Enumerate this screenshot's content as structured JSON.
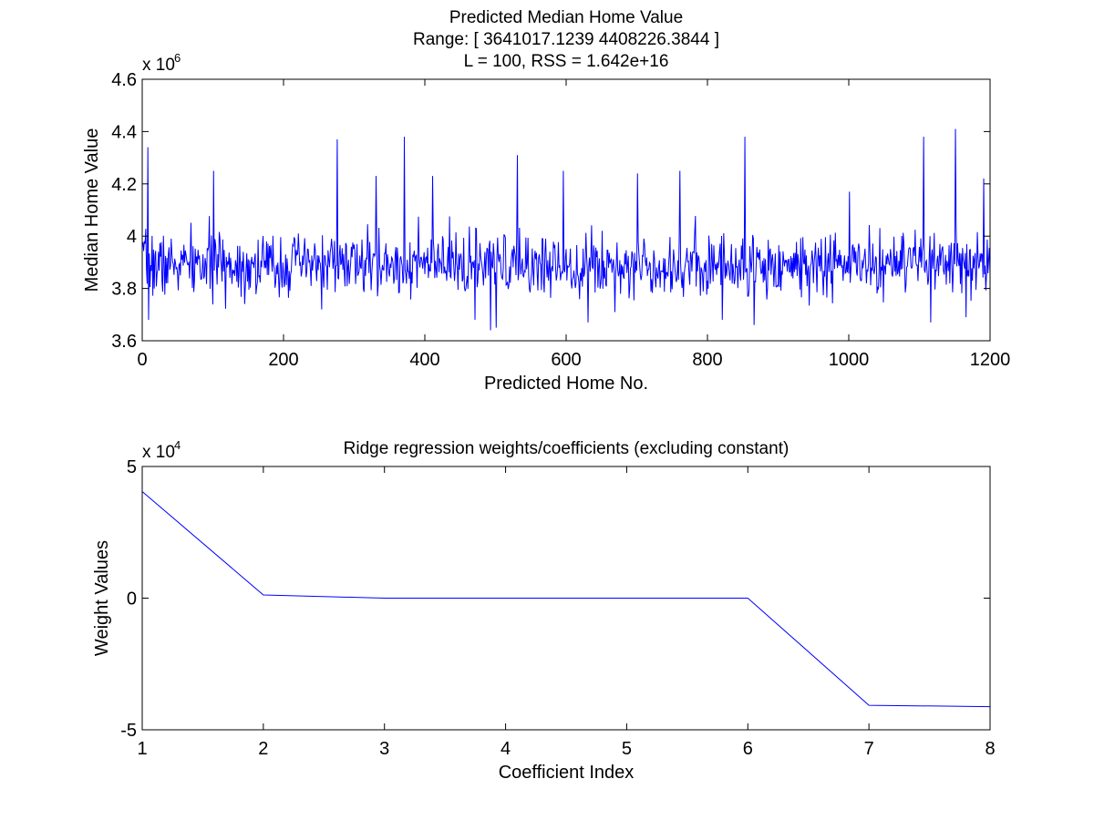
{
  "figure": {
    "background": "#ffffff",
    "axes_color": "#000000"
  },
  "chart_data": [
    {
      "type": "line",
      "title": [
        "Predicted Median Home Value",
        "Range: [ 3641017.1239      4408226.3844 ]",
        "L = 100, RSS = 1.642e+16"
      ],
      "xlabel": "Predicted Home No.",
      "ylabel": "Median Home Value",
      "xlim": [
        0,
        1200
      ],
      "ylim": [
        3.6,
        4.6
      ],
      "y_multiplier": "x 10",
      "y_multiplier_exponent": "6",
      "xticks": [
        0,
        200,
        400,
        600,
        800,
        1000,
        1200
      ],
      "xticklabels": [
        "0",
        "200",
        "400",
        "600",
        "800",
        "1000",
        "1200"
      ],
      "yticks": [
        3.6,
        3.8,
        4.0,
        4.2,
        4.4,
        4.6
      ],
      "yticklabels": [
        "3.6",
        "3.8",
        "4",
        "4.2",
        "4.4",
        "4.6"
      ],
      "grid": false,
      "line_color": "#0000ff",
      "series": [
        {
          "num_points": 1200,
          "range": [
            3.641017,
            4.408226
          ],
          "baseline": 3.89,
          "noise_sd": 0.06,
          "noise_seed": 7,
          "spikes": [
            [
              7,
              4.34
            ],
            [
              8,
              3.68
            ],
            [
              100,
              4.25
            ],
            [
              275,
              4.37
            ],
            [
              330,
              4.23
            ],
            [
              370,
              4.38
            ],
            [
              410,
              4.23
            ],
            [
              470,
              3.68
            ],
            [
              492,
              3.64
            ],
            [
              500,
              3.65
            ],
            [
              530,
              4.31
            ],
            [
              595,
              4.25
            ],
            [
              630,
              3.67
            ],
            [
              700,
              4.24
            ],
            [
              760,
              4.25
            ],
            [
              820,
              3.68
            ],
            [
              852,
              4.38
            ],
            [
              865,
              3.66
            ],
            [
              1000,
              4.17
            ],
            [
              1105,
              4.38
            ],
            [
              1115,
              3.67
            ],
            [
              1150,
              4.41
            ],
            [
              1165,
              3.69
            ],
            [
              1190,
              4.22
            ]
          ]
        }
      ]
    },
    {
      "type": "line",
      "title": [
        "Ridge regression weights/coefficients (excluding constant)"
      ],
      "xlabel": "Coefficient Index",
      "ylabel": "Weight Values",
      "xlim": [
        1,
        8
      ],
      "ylim": [
        -5,
        5
      ],
      "y_multiplier": "x 10",
      "y_multiplier_exponent": "4",
      "xticks": [
        1,
        2,
        3,
        4,
        5,
        6,
        7,
        8
      ],
      "xticklabels": [
        "1",
        "2",
        "3",
        "4",
        "5",
        "6",
        "7",
        "8"
      ],
      "yticks": [
        -5,
        0,
        5
      ],
      "yticklabels": [
        "-5",
        "0",
        "5"
      ],
      "grid": false,
      "line_color": "#0000ff",
      "series": [
        {
          "x": [
            1,
            2,
            3,
            4,
            5,
            6,
            7,
            8
          ],
          "y": [
            4.05,
            0.12,
            0.0,
            0.0,
            0.0,
            0.0,
            -4.07,
            -4.12
          ]
        }
      ]
    }
  ]
}
